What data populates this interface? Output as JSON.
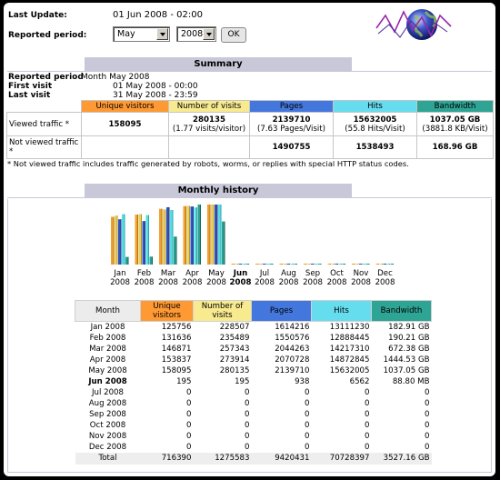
{
  "header": {
    "last_update_label": "Last Update:",
    "last_update_value": "01 Jun 2008 - 02:00",
    "period_label": "Reported period:",
    "month_select": "May",
    "year_select": "2008",
    "ok_label": "OK"
  },
  "summary": {
    "title": "Summary",
    "reported_period_label": "Reported period",
    "reported_period_value": "Month May 2008",
    "first_visit_label": "First visit",
    "first_visit_value": "01 May 2008 - 00:00",
    "last_visit_label": "Last visit",
    "last_visit_value": "31 May 2008 - 23:59",
    "columns": [
      "Unique visitors",
      "Number of visits",
      "Pages",
      "Hits",
      "Bandwidth"
    ],
    "viewed_label": "Viewed traffic *",
    "viewed": {
      "unique": "158095",
      "visits": "280135",
      "visits_sub": "(1.77 visits/visitor)",
      "pages": "2139710",
      "pages_sub": "(7.63 Pages/Visit)",
      "hits": "15632005",
      "hits_sub": "(55.8 Hits/Visit)",
      "bandwidth": "1037.05 GB",
      "bandwidth_sub": "(3881.8 KB/Visit)"
    },
    "not_viewed_label": "Not viewed traffic *",
    "not_viewed": {
      "pages": "1490755",
      "hits": "1538493",
      "bandwidth": "168.96 GB"
    },
    "footnote": "* Not viewed traffic includes traffic generated by robots, worms, or replies with special HTTP status codes."
  },
  "history": {
    "title": "Monthly history",
    "columns": [
      "Month",
      "Unique visitors",
      "Number of visits",
      "Pages",
      "Hits",
      "Bandwidth"
    ],
    "rows": [
      {
        "month": "Jan 2008",
        "uv": "125756",
        "visits": "228507",
        "pages": "1614216",
        "hits": "13111230",
        "bw": "182.91 GB"
      },
      {
        "month": "Feb 2008",
        "uv": "131636",
        "visits": "235489",
        "pages": "1550576",
        "hits": "12888445",
        "bw": "190.21 GB"
      },
      {
        "month": "Mar 2008",
        "uv": "146871",
        "visits": "257343",
        "pages": "2044263",
        "hits": "14217310",
        "bw": "672.38 GB"
      },
      {
        "month": "Apr 2008",
        "uv": "153837",
        "visits": "273914",
        "pages": "2070728",
        "hits": "14872845",
        "bw": "1444.53 GB"
      },
      {
        "month": "May 2008",
        "uv": "158095",
        "visits": "280135",
        "pages": "2139710",
        "hits": "15632005",
        "bw": "1037.05 GB"
      },
      {
        "month": "Jun 2008",
        "uv": "195",
        "visits": "195",
        "pages": "938",
        "hits": "6562",
        "bw": "88.80 MB",
        "bold": true
      },
      {
        "month": "Jul 2008",
        "uv": "0",
        "visits": "0",
        "pages": "0",
        "hits": "0",
        "bw": "0"
      },
      {
        "month": "Aug 2008",
        "uv": "0",
        "visits": "0",
        "pages": "0",
        "hits": "0",
        "bw": "0"
      },
      {
        "month": "Sep 2008",
        "uv": "0",
        "visits": "0",
        "pages": "0",
        "hits": "0",
        "bw": "0"
      },
      {
        "month": "Oct 2008",
        "uv": "0",
        "visits": "0",
        "pages": "0",
        "hits": "0",
        "bw": "0"
      },
      {
        "month": "Nov 2008",
        "uv": "0",
        "visits": "0",
        "pages": "0",
        "hits": "0",
        "bw": "0"
      },
      {
        "month": "Dec 2008",
        "uv": "0",
        "visits": "0",
        "pages": "0",
        "hits": "0",
        "bw": "0"
      }
    ],
    "total": {
      "month": "Total",
      "uv": "716390",
      "visits": "1275583",
      "pages": "9420431",
      "hits": "70728397",
      "bw": "3527.16 GB"
    }
  },
  "chart_data": {
    "type": "bar",
    "categories": [
      [
        "Jan",
        "2008"
      ],
      [
        "Feb",
        "2008"
      ],
      [
        "Mar",
        "2008"
      ],
      [
        "Apr",
        "2008"
      ],
      [
        "May",
        "2008"
      ],
      [
        "Jun",
        "2008"
      ],
      [
        "Jul",
        "2008"
      ],
      [
        "Aug",
        "2008"
      ],
      [
        "Sep",
        "2008"
      ],
      [
        "Oct",
        "2008"
      ],
      [
        "Nov",
        "2008"
      ],
      [
        "Dec",
        "2008"
      ]
    ],
    "highlight_category": 5,
    "series": [
      {
        "key": "uv",
        "values": [
          125756,
          131636,
          146871,
          153837,
          158095,
          195,
          0,
          0,
          0,
          0,
          0,
          0
        ],
        "color": "#f0a030"
      },
      {
        "key": "visits",
        "values": [
          228507,
          235489,
          257343,
          273914,
          280135,
          195,
          0,
          0,
          0,
          0,
          0,
          0
        ],
        "color": "#e8d060"
      },
      {
        "key": "pages",
        "values": [
          1614216,
          1550576,
          2044263,
          2070728,
          2139710,
          938,
          0,
          0,
          0,
          0,
          0,
          0
        ],
        "color": "#3355bb"
      },
      {
        "key": "hits",
        "values": [
          13111230,
          12888445,
          14217310,
          14872845,
          15632005,
          6562,
          0,
          0,
          0,
          0,
          0,
          0
        ],
        "color": "#55dde0"
      },
      {
        "key": "bandwidth_gb",
        "values": [
          182.91,
          190.21,
          672.38,
          1444.53,
          1037.05,
          0.0888,
          0,
          0,
          0,
          0,
          0,
          0
        ],
        "color": "#2aa090"
      }
    ]
  }
}
